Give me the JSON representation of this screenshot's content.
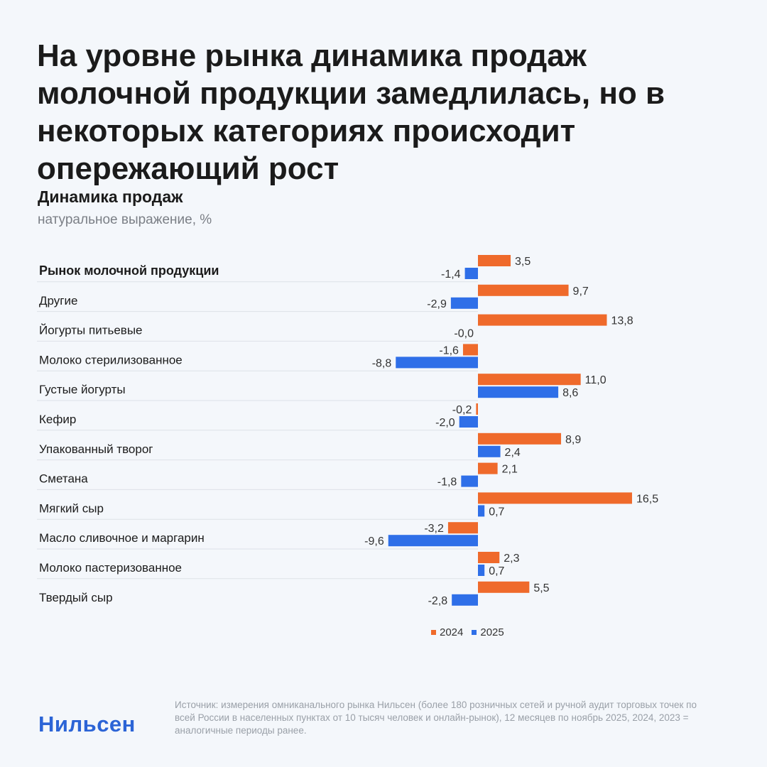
{
  "headline": "На уровне рынка динамика продаж молочной продукции замедлилась, но в некоторых категориях происходит опережающий рост",
  "source": "Источник: измерения омниканального рынка Нильсен (более 180 розничных сетей и ручной аудит торговых точек по всей России в населенных пунктах от 10 тысяч человек и онлайн-рынок), 12 месяцев по ноябрь 2025, 2024, 2023 = аналогичные периоды ранее.",
  "logo": "Нильсен",
  "colors": {
    "series_2024": "#ef6a2b",
    "series_2025": "#2f6fe8"
  },
  "chart_data": {
    "type": "bar",
    "orientation": "horizontal",
    "title": "Динамика продаж",
    "subtitle": "натуральное выражение, %",
    "legend_position": "bottom",
    "categories": [
      "Рынок молочной продукции",
      "Другие",
      "Йогурты питьевые",
      "Молоко стерилизованное",
      "Густые йогурты",
      "Кефир",
      "Упакованный творог",
      "Сметана",
      "Мягкий сыр",
      "Масло сливочное и маргарин",
      "Молоко пастеризованное",
      "Твердый сыр"
    ],
    "series": [
      {
        "name": "2024",
        "values": [
          3.5,
          9.7,
          13.8,
          -1.6,
          11.0,
          -0.2,
          8.9,
          2.1,
          16.5,
          -3.2,
          2.3,
          5.5
        ],
        "labels": [
          "3,5",
          "9,7",
          "13,8",
          "-1,6",
          "11,0",
          "-0,2",
          "8,9",
          "2,1",
          "16,5",
          "-3,2",
          "2,3",
          "5,5"
        ]
      },
      {
        "name": "2025",
        "values": [
          -1.4,
          -2.9,
          -0.0,
          -8.8,
          8.6,
          -2.0,
          2.4,
          -1.8,
          0.7,
          -9.6,
          0.7,
          -2.8
        ],
        "labels": [
          "-1,4",
          "-2,9",
          "-0,0",
          "-8,8",
          "8,6",
          "-2,0",
          "2,4",
          "-1,8",
          "0,7",
          "-9,6",
          "0,7",
          "-2,8"
        ]
      }
    ]
  }
}
